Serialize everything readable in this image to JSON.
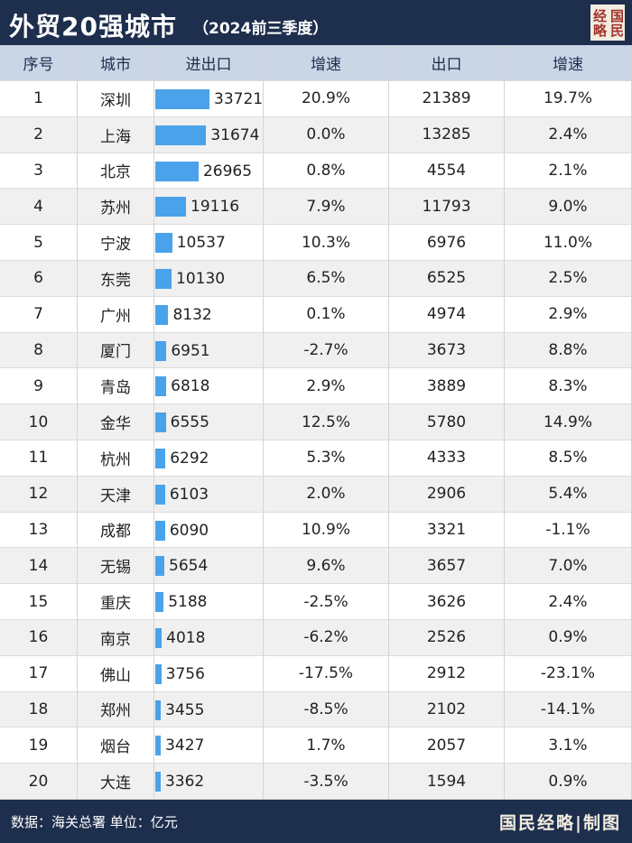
{
  "header": {
    "title": "外贸20强城市",
    "subtitle": "（2024前三季度）",
    "logo": "国民经略"
  },
  "table": {
    "columns": [
      "序号",
      "城市",
      "进出口",
      "增速",
      "出口",
      "增速"
    ],
    "rows": [
      [
        1,
        "深圳",
        33721,
        "20.9%",
        21389,
        "19.7%"
      ],
      [
        2,
        "上海",
        31674,
        "0.0%",
        13285,
        "2.4%"
      ],
      [
        3,
        "北京",
        26965,
        "0.8%",
        4554,
        "2.1%"
      ],
      [
        4,
        "苏州",
        19116,
        "7.9%",
        11793,
        "9.0%"
      ],
      [
        5,
        "宁波",
        10537,
        "10.3%",
        6976,
        "11.0%"
      ],
      [
        6,
        "东莞",
        10130,
        "6.5%",
        6525,
        "2.5%"
      ],
      [
        7,
        "广州",
        8132,
        "0.1%",
        4974,
        "2.9%"
      ],
      [
        8,
        "厦门",
        6951,
        "-2.7%",
        3673,
        "8.8%"
      ],
      [
        9,
        "青岛",
        6818,
        "2.9%",
        3889,
        "8.3%"
      ],
      [
        10,
        "金华",
        6555,
        "12.5%",
        5780,
        "14.9%"
      ],
      [
        11,
        "杭州",
        6292,
        "5.3%",
        4333,
        "8.5%"
      ],
      [
        12,
        "天津",
        6103,
        "2.0%",
        2906,
        "5.4%"
      ],
      [
        13,
        "成都",
        6090,
        "10.9%",
        3321,
        "-1.1%"
      ],
      [
        14,
        "无锡",
        5654,
        "9.6%",
        3657,
        "7.0%"
      ],
      [
        15,
        "重庆",
        5188,
        "-2.5%",
        3626,
        "2.4%"
      ],
      [
        16,
        "南京",
        4018,
        "-6.2%",
        2526,
        "0.9%"
      ],
      [
        17,
        "佛山",
        3756,
        "-17.5%",
        2912,
        "-23.1%"
      ],
      [
        18,
        "郑州",
        3455,
        "-8.5%",
        2102,
        "-14.1%"
      ],
      [
        19,
        "烟台",
        3427,
        "1.7%",
        2057,
        "3.1%"
      ],
      [
        20,
        "大连",
        3362,
        "-3.5%",
        1594,
        "0.9%"
      ]
    ]
  },
  "footer": {
    "source": "数据：海关总署 单位：亿元",
    "credit": "国民经略|制图"
  }
}
